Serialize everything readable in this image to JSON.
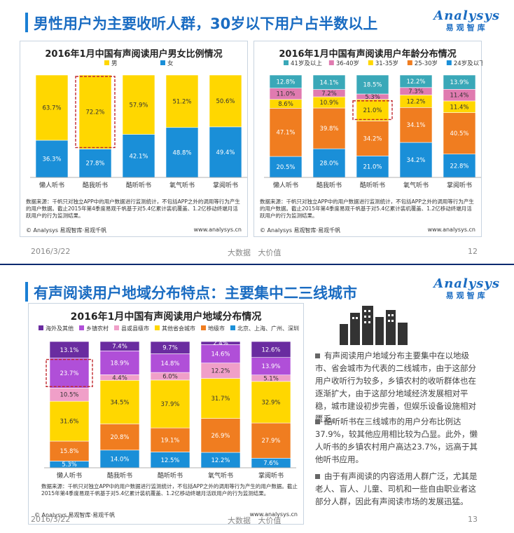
{
  "slide1": {
    "title": "男性用户为主要收听人群，30岁以下用户占半数以上",
    "date": "2016/3/22",
    "tagline": "大数据   大价值",
    "page": "12"
  },
  "slide2": {
    "title": "有声阅读用户地域分布特点：主要集中二三线城市",
    "date": "2016/3/22",
    "tagline": "大数据   大价值",
    "page": "13",
    "bullets": [
      "有声阅读用户地域分布主要集中在以地级市、省会城市为代表的二线城市，由于这部分用户收听行为较多，乡镇农村的收听群体也在逐渐扩大，由于这部分地域经济发展相对平稳，城市建设初步完善，但娱乐设备设施相对匮乏。",
      "酷听听书在三线城市的用户分布比例达37.9%，较其他应用相比较为凸显。此外，懒人听书的乡镇农村用户高达23.7%，远高于其他听书应用。",
      "由于有声阅读的内容适用人群广泛，尤其是老人、盲人、儿童、司机和一些自由职业者这部分人群，因此有声阅读市场的发展迅猛。"
    ]
  },
  "logo": {
    "en": "Analysys",
    "cn": "易观智库"
  },
  "source_text": "数据来源：千帆只对独立APP中的用户数据进行监测统计，不包括APP之外的调用等行为产生的用户数据。截止2015年第4季度易观千帆基于对5.4亿累计装机覆盖、1.2亿移动终端月活跃用户的行为监测结果。",
  "copyright": "© Analysys 易观智库·易观千帆",
  "site": "www.analysys.cn",
  "colors": {
    "male": "#ffd700",
    "female": "#1a8fd8",
    "age41": "#3aa8b8",
    "age36": "#e07bb0",
    "age31": "#ffd700",
    "age25": "#f07d20",
    "age24": "#1a8fd8",
    "reg_overseas": "#6a2ca0",
    "reg_rural": "#b04fd8",
    "reg_county": "#f09fc8",
    "reg_other": "#ffd700",
    "reg_pref": "#f07d20",
    "reg_tier1": "#1a8fd8",
    "highlight": "#c0282d"
  },
  "chart_data": [
    {
      "type": "bar",
      "stacked": true,
      "title": "2016年1月中国有声阅读用户男女比例情况",
      "categories": [
        "懒人听书",
        "酷我听书",
        "酷听听书",
        "氧气听书",
        "掌阅听书"
      ],
      "series": [
        {
          "name": "女",
          "values": [
            36.3,
            27.8,
            42.1,
            48.8,
            49.4
          ]
        },
        {
          "name": "男",
          "values": [
            63.7,
            72.2,
            57.9,
            51.2,
            50.6
          ]
        }
      ],
      "legend": [
        "男",
        "女"
      ],
      "highlight": {
        "category": "酷我听书",
        "series": "男"
      },
      "ylim": [
        0,
        100
      ]
    },
    {
      "type": "bar",
      "stacked": true,
      "title": "2016年1月中国有声阅读用户年龄分布情况",
      "categories": [
        "懒人听书",
        "酷我听书",
        "酷听听书",
        "氧气听书",
        "掌阅听书"
      ],
      "series": [
        {
          "name": "24岁及以下",
          "values": [
            20.5,
            28.0,
            21.0,
            34.2,
            22.8
          ]
        },
        {
          "name": "25-30岁",
          "values": [
            47.1,
            39.8,
            34.2,
            34.1,
            40.5
          ]
        },
        {
          "name": "31-35岁",
          "values": [
            8.6,
            10.9,
            21.0,
            12.2,
            11.4
          ]
        },
        {
          "name": "36-40岁",
          "values": [
            11.0,
            7.2,
            5.3,
            7.3,
            11.4
          ]
        },
        {
          "name": "41岁及以上",
          "values": [
            12.8,
            14.1,
            18.5,
            12.2,
            13.9
          ]
        }
      ],
      "legend": [
        "41岁及以上",
        "36-40岁",
        "31-35岁",
        "25-30岁",
        "24岁及以下"
      ],
      "highlight": {
        "category": "酷听听书",
        "series": "31-35岁"
      },
      "ylim": [
        0,
        100
      ]
    },
    {
      "type": "bar",
      "stacked": true,
      "title": "2016年1月中国有声阅读用户地域分布情况",
      "categories": [
        "懒人听书",
        "酷我听书",
        "酷听听书",
        "氧气听书",
        "掌阅听书"
      ],
      "series": [
        {
          "name": "北京、上海、广州、深圳",
          "values": [
            5.3,
            14.0,
            12.5,
            12.2,
            7.6
          ]
        },
        {
          "name": "地级市",
          "values": [
            15.8,
            20.8,
            19.1,
            26.9,
            27.9
          ]
        },
        {
          "name": "其他省会城市",
          "values": [
            31.6,
            34.5,
            37.9,
            31.7,
            32.9
          ]
        },
        {
          "name": "县或县级市",
          "values": [
            10.5,
            4.4,
            6.0,
            12.2,
            5.1
          ]
        },
        {
          "name": "乡镇农村",
          "values": [
            23.7,
            18.9,
            14.8,
            14.6,
            13.9
          ]
        },
        {
          "name": "海外及其他",
          "values": [
            13.1,
            7.4,
            9.7,
            2.4,
            12.6
          ]
        }
      ],
      "legend": [
        "海外及其他",
        "乡镇农村",
        "县或县级市",
        "其他省会城市",
        "地级市",
        "北京、上海、广州、深圳"
      ],
      "highlight": {
        "category": "懒人听书",
        "series": "乡镇农村"
      },
      "ylim": [
        0,
        100
      ]
    }
  ]
}
